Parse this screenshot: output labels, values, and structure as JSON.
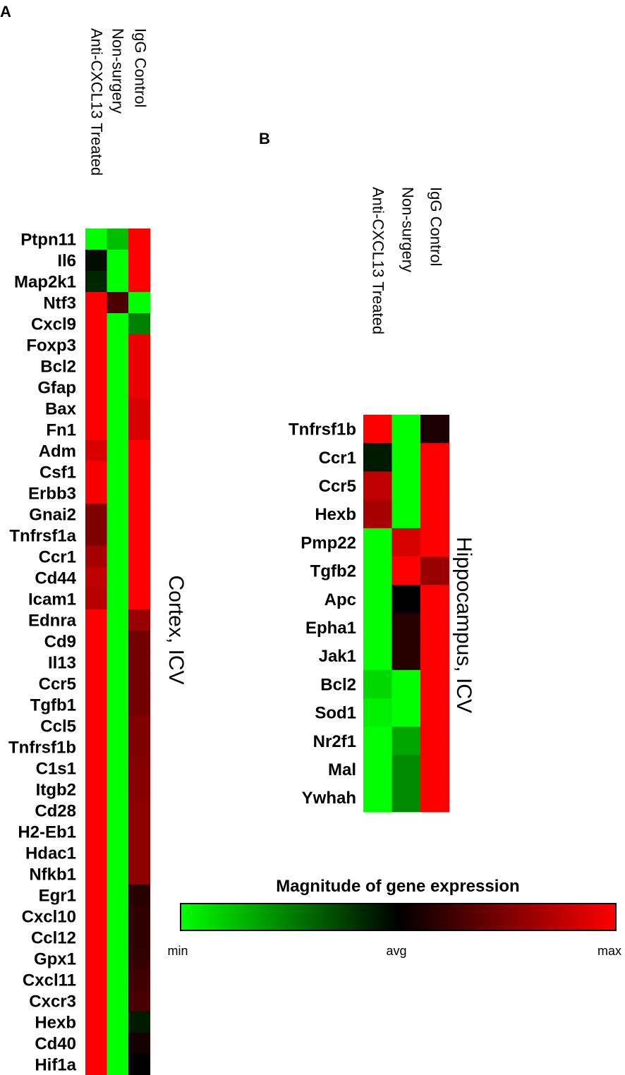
{
  "figure": {
    "panel_a": "A",
    "panel_b": "B"
  },
  "legend": {
    "title": "Magnitude of gene expression",
    "ticks": [
      "min",
      "avg",
      "max"
    ],
    "colors": {
      "min": "#00ff00",
      "avg": "#000000",
      "max": "#ff0000"
    }
  },
  "chart_data": [
    {
      "type": "heatmap",
      "panel": "A",
      "title": "Cortex, ICV",
      "value_scale": "-1 = min (green), 0 = avg (black), 1 = max (red)",
      "columns": [
        "Anti-CXCL13 Treated",
        "Non-surgery",
        "IgG Control"
      ],
      "rows": [
        "Ptpn11",
        "Il6",
        "Map2k1",
        "Ntf3",
        "Cxcl9",
        "Foxp3",
        "Bcl2",
        "Gfap",
        "Bax",
        "Fn1",
        "Adm",
        "Csf1",
        "Erbb3",
        "Gnai2",
        "Tnfrsf1a",
        "Ccr1",
        "Cd44",
        "Icam1",
        "Ednra",
        "Cd9",
        "Il13",
        "Ccr5",
        "Tgfb1",
        "Ccl5",
        "Tnfrsf1b",
        "C1s1",
        "Itgb2",
        "Cd28",
        "H2-Eb1",
        "Hdac1",
        "Nfkb1",
        "Egr1",
        "Cxcl10",
        "Ccl12",
        "Gpx1",
        "Cxcl11",
        "Cxcr3",
        "Hexb",
        "Cd40",
        "Hif1a"
      ],
      "values": [
        [
          -1,
          -0.75,
          1
        ],
        [
          -0.05,
          -1,
          1
        ],
        [
          -0.15,
          -1,
          1
        ],
        [
          1,
          0.3,
          -1
        ],
        [
          1,
          -1,
          -0.5
        ],
        [
          1,
          -1,
          0.92
        ],
        [
          1,
          -1,
          0.92
        ],
        [
          1,
          -1,
          0.92
        ],
        [
          1,
          -1,
          0.85
        ],
        [
          1,
          -1,
          0.85
        ],
        [
          0.85,
          -1,
          1
        ],
        [
          0.97,
          -1,
          1
        ],
        [
          0.97,
          -1,
          1
        ],
        [
          0.5,
          -1,
          1
        ],
        [
          0.5,
          -1,
          1
        ],
        [
          0.65,
          -1,
          1
        ],
        [
          0.75,
          -1,
          1
        ],
        [
          0.72,
          -1,
          1
        ],
        [
          1,
          -1,
          0.6
        ],
        [
          1,
          -1,
          0.45
        ],
        [
          1,
          -1,
          0.45
        ],
        [
          1,
          -1,
          0.45
        ],
        [
          1,
          -1,
          0.45
        ],
        [
          1,
          -1,
          0.5
        ],
        [
          1,
          -1,
          0.5
        ],
        [
          1,
          -1,
          0.52
        ],
        [
          1,
          -1,
          0.52
        ],
        [
          1,
          -1,
          0.55
        ],
        [
          1,
          -1,
          0.55
        ],
        [
          1,
          -1,
          0.55
        ],
        [
          1,
          -1,
          0.55
        ],
        [
          1,
          -1,
          0.15
        ],
        [
          1,
          -1,
          0.18
        ],
        [
          1,
          -1,
          0.18
        ],
        [
          1,
          -1,
          0.2
        ],
        [
          1,
          -1,
          0.25
        ],
        [
          1,
          -1,
          0.28
        ],
        [
          1,
          -1,
          -0.1
        ],
        [
          1,
          -1,
          0.08
        ],
        [
          1,
          -1,
          0
        ]
      ]
    },
    {
      "type": "heatmap",
      "panel": "B",
      "title": "Hippocampus, ICV",
      "value_scale": "-1 = min (green), 0 = avg (black), 1 = max (red)",
      "columns": [
        "Anti-CXCL13 Treated",
        "Non-surgery",
        "IgG Control"
      ],
      "rows": [
        "Tnfrsf1b",
        "Ccr1",
        "Ccr5",
        "Hexb",
        "Pmp22",
        "Tgfb2",
        "Apc",
        "Epha1",
        "Jak1",
        "Bcl2",
        "Sod1",
        "Nr2f1",
        "Mal",
        "Ywhah"
      ],
      "values": [
        [
          1,
          -1,
          0.1
        ],
        [
          -0.1,
          -1,
          1
        ],
        [
          0.75,
          -1,
          1
        ],
        [
          0.65,
          -1,
          1
        ],
        [
          -1,
          0.85,
          1
        ],
        [
          -1,
          1,
          0.6
        ],
        [
          -1,
          0,
          1
        ],
        [
          -1,
          0.15,
          1
        ],
        [
          -1,
          0.15,
          1
        ],
        [
          -0.85,
          -1,
          1
        ],
        [
          -0.95,
          -1,
          1
        ],
        [
          -1,
          -0.65,
          1
        ],
        [
          -1,
          -0.55,
          1
        ],
        [
          -1,
          -0.55,
          1
        ]
      ]
    }
  ]
}
